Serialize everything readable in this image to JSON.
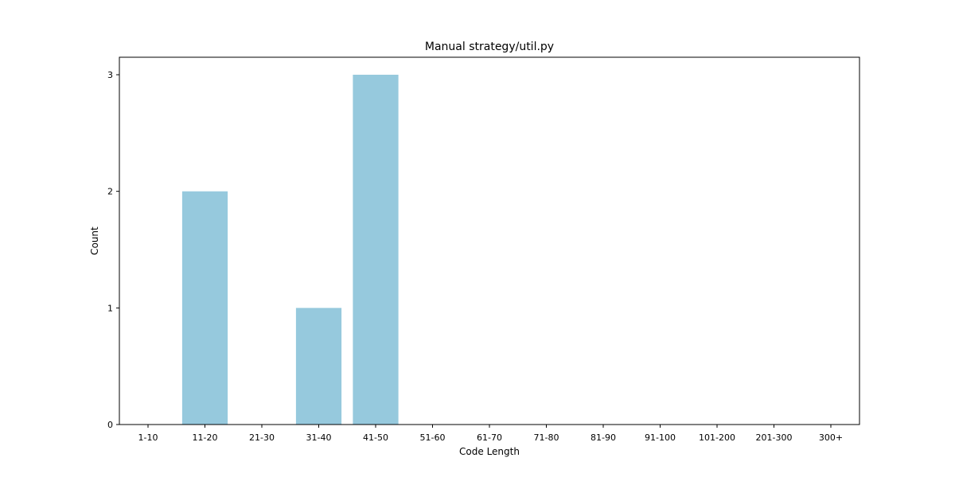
{
  "chart_data": {
    "type": "bar",
    "title": "Manual strategy/util.py",
    "xlabel": "Code Length",
    "ylabel": "Count",
    "categories": [
      "1-10",
      "11-20",
      "21-30",
      "31-40",
      "41-50",
      "51-60",
      "61-70",
      "71-80",
      "81-90",
      "91-100",
      "101-200",
      "201-300",
      "300+"
    ],
    "values": [
      0,
      2,
      0,
      1,
      3,
      0,
      0,
      0,
      0,
      0,
      0,
      0,
      0
    ],
    "ylim": [
      0,
      3.15
    ],
    "yticks": [
      0,
      1,
      2,
      3
    ],
    "grid": false,
    "legend": "none",
    "bar_color": "#96c9dd"
  }
}
